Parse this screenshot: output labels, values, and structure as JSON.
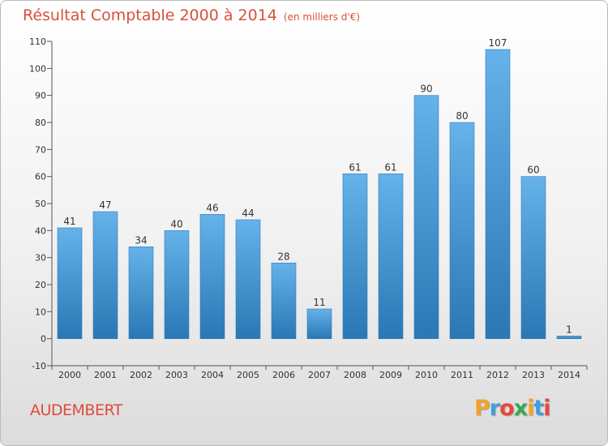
{
  "chart_data": {
    "type": "bar",
    "title": "Résultat Comptable 2000 à 2014",
    "unit_note": "(en milliers d'€)",
    "categories": [
      "2000",
      "2001",
      "2002",
      "2003",
      "2004",
      "2005",
      "2006",
      "2007",
      "2008",
      "2009",
      "2010",
      "2011",
      "2012",
      "2013",
      "2014"
    ],
    "values": [
      41,
      47,
      34,
      40,
      46,
      44,
      28,
      11,
      61,
      61,
      90,
      80,
      107,
      60,
      1
    ],
    "ylim": [
      -10,
      110
    ],
    "yticks": [
      -10,
      0,
      10,
      20,
      30,
      40,
      50,
      60,
      70,
      80,
      90,
      100,
      110
    ],
    "xlabel": "",
    "ylabel": "",
    "grid": false
  },
  "footer": {
    "commune": "AUDEMBERT",
    "logo_letters": [
      "P",
      "r",
      "o",
      "x",
      "i",
      "t",
      "i"
    ],
    "logo_colors": [
      "#f2a22c",
      "#3f9fd8",
      "#e8473b",
      "#3aa84a",
      "#f2a22c",
      "#3f9fd8",
      "#e8473b"
    ]
  },
  "colors": {
    "bar_light": "#66b2ea",
    "bar_dark": "#2a77b4",
    "title": "#d8503a"
  }
}
